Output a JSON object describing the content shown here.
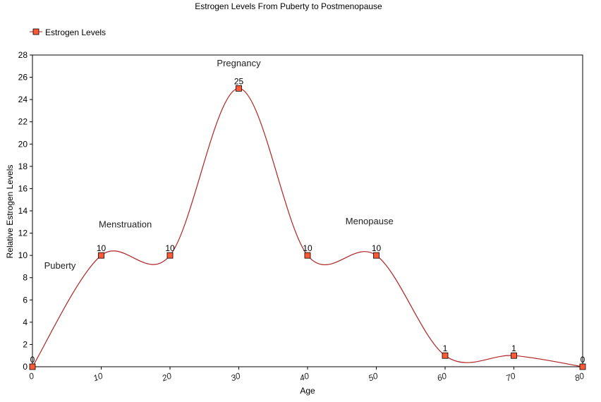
{
  "chart_data": {
    "type": "line",
    "title": "Estrogen Levels From Puberty to Postmenopause",
    "xlabel": "Age",
    "ylabel": "Relative Estrogen Levels",
    "xlim": [
      0,
      80
    ],
    "ylim": [
      0,
      28
    ],
    "x_ticks": [
      0,
      10,
      20,
      30,
      40,
      50,
      60,
      70,
      80
    ],
    "y_ticks": [
      0,
      2,
      4,
      6,
      8,
      10,
      12,
      14,
      16,
      18,
      20,
      22,
      24,
      26,
      28
    ],
    "grid": false,
    "legend": "top-left",
    "smooth": true,
    "series": [
      {
        "name": "Estrogen Levels",
        "color": "#b22222",
        "marker_color": "#ff5a36",
        "marker": "square",
        "x": [
          0,
          10,
          20,
          30,
          40,
          50,
          60,
          70,
          80
        ],
        "y": [
          0,
          10,
          10,
          25,
          10,
          10,
          1,
          1,
          0
        ],
        "data_labels": [
          "0",
          "10",
          "10",
          "25",
          "10",
          "10",
          "1",
          "1",
          "0"
        ]
      }
    ],
    "annotations": [
      {
        "text": "Puberty",
        "x": 4,
        "y": 8.8
      },
      {
        "text": "Menstruation",
        "x": 13.5,
        "y": 12.5
      },
      {
        "text": "Pregnancy",
        "x": 30,
        "y": 27
      },
      {
        "text": "Menopause",
        "x": 49,
        "y": 12.8
      }
    ]
  }
}
